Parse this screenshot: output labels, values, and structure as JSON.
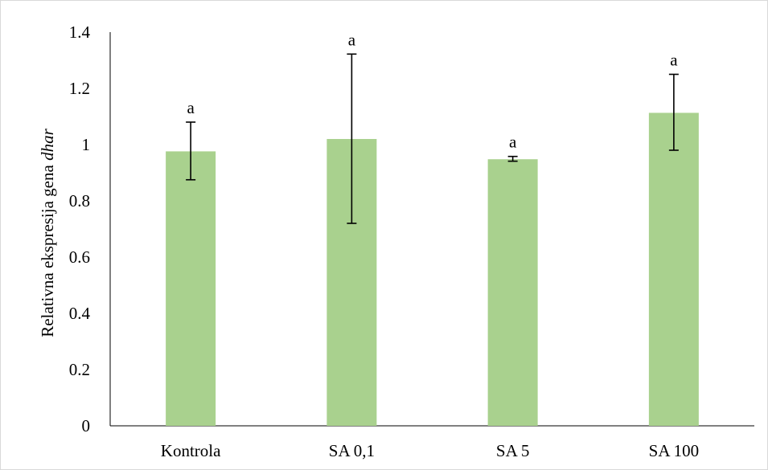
{
  "chart_data": {
    "type": "bar",
    "title": "",
    "xlabel": "",
    "ylabel": "Relativna ekspresija gena",
    "ylabel_gene": "dhar",
    "categories": [
      "Kontrola",
      "SA 0,1",
      "SA 5",
      "SA 100"
    ],
    "values": [
      0.976,
      1.02,
      0.948,
      1.113
    ],
    "error_bars": [
      {
        "low": 0.875,
        "high": 1.08
      },
      {
        "low": 0.72,
        "high": 1.322
      },
      {
        "low": 0.941,
        "high": 0.958
      },
      {
        "low": 0.98,
        "high": 1.25
      }
    ],
    "significance_labels": [
      "a",
      "a",
      "a",
      "a"
    ],
    "ylim": [
      0,
      1.4
    ],
    "yticks": [
      "0",
      "0.2",
      "0.4",
      "0.6",
      "0.8",
      "1",
      "1.2",
      "1.4"
    ],
    "ytick_values": [
      0,
      0.2,
      0.4,
      0.6,
      0.8,
      1.0,
      1.2,
      1.4
    ],
    "grid": false,
    "bar_color": "#a9d18e",
    "axis_color": "#000000"
  }
}
